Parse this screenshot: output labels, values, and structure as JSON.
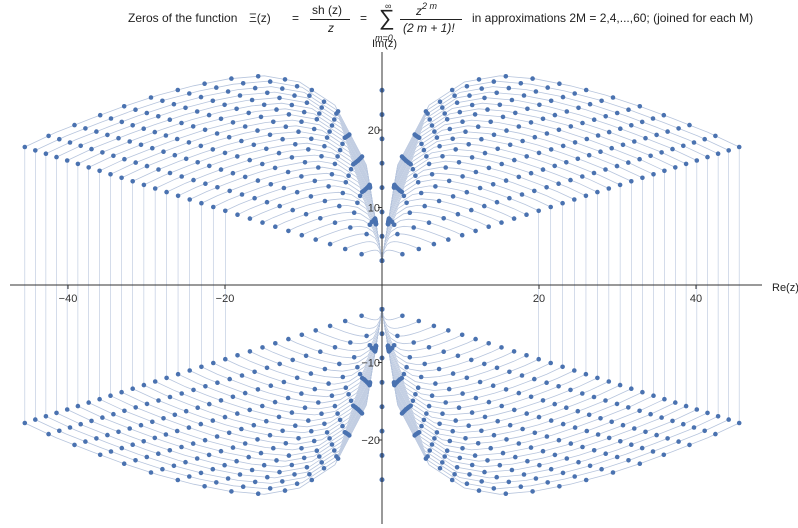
{
  "title": {
    "prefix": "Zeros of the function",
    "xi": "Ξ(z)",
    "eq1": "=",
    "frac_num": "sh (z)",
    "frac_den": "z",
    "eq2": "=",
    "sum_top": "∞",
    "sum_sym": "∑",
    "sum_bottom": "m=0",
    "series_num_base": "z",
    "series_num_exp": "2 m",
    "series_den": "(2 m + 1)!",
    "suffix": "in approximations  2M = 2,4,...,60; (joined for each  M)"
  },
  "chart_data": {
    "type": "scatter",
    "title": "Zeros of the function Ξ(z) = sh(z)/z = Σ_{m=0}^{∞} z^{2m}/(2m+1)! in approximations 2M = 2,4,...,60; (joined for each M)",
    "xlabel": "Re(z)",
    "ylabel": "Im(z)",
    "xlim": [
      -47.5,
      47.5
    ],
    "ylim": [
      -30.5,
      31
    ],
    "x_ticks": [
      -40,
      -20,
      20,
      40
    ],
    "x_tick_labels": [
      "−40",
      "−20",
      "20",
      "40"
    ],
    "y_ticks": [
      -20,
      -10,
      10,
      20
    ],
    "y_tick_labels": [
      "−20",
      "−10",
      "10",
      "20"
    ],
    "grid": false,
    "legend": "none",
    "marker_color": "#4a72b0",
    "line_color": "#b7c5dd",
    "approximation_orders_2M": [
      2,
      4,
      6,
      8,
      10,
      12,
      14,
      16,
      18,
      20,
      22,
      24,
      26,
      28,
      30,
      32,
      34,
      36,
      38,
      40,
      42,
      44,
      46,
      48,
      50,
      52,
      54,
      56,
      58,
      60
    ],
    "exact_zeros_imag": [
      3.1416,
      6.2832,
      9.4248,
      12.5664,
      15.708,
      18.8496,
      21.9911,
      25.1327
    ],
    "outermost_curve_points": [
      {
        "x": -45.5,
        "y": 17.8
      },
      {
        "x": -41.5,
        "y": 19.7
      },
      {
        "x": -37.0,
        "y": 21.5
      },
      {
        "x": -33.0,
        "y": 23.0
      },
      {
        "x": -28.5,
        "y": 24.5
      },
      {
        "x": -24.0,
        "y": 25.7
      },
      {
        "x": -19.5,
        "y": 26.6
      },
      {
        "x": -15.0,
        "y": 27.0
      },
      {
        "x": -10.5,
        "y": 26.2
      },
      {
        "x": -6.0,
        "y": 23.2
      },
      {
        "x": -2.0,
        "y": 15.5
      },
      {
        "x": 0.0,
        "y": 3.14
      },
      {
        "x": 2.0,
        "y": 15.5
      },
      {
        "x": 6.0,
        "y": 23.2
      },
      {
        "x": 10.5,
        "y": 26.2
      },
      {
        "x": 15.0,
        "y": 27.0
      },
      {
        "x": 19.5,
        "y": 26.6
      },
      {
        "x": 24.0,
        "y": 25.7
      },
      {
        "x": 28.5,
        "y": 24.5
      },
      {
        "x": 33.0,
        "y": 23.0
      },
      {
        "x": 37.0,
        "y": 21.5
      },
      {
        "x": 41.5,
        "y": 19.7
      },
      {
        "x": 45.5,
        "y": 17.8
      }
    ],
    "symmetry": "zeros symmetric about both the real and the imaginary axis"
  }
}
